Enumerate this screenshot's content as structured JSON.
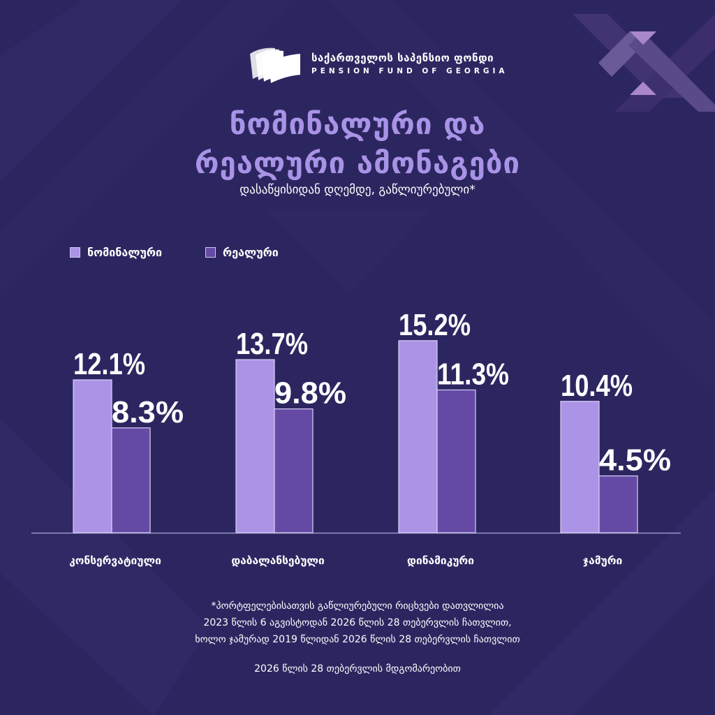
{
  "brand": {
    "name_ka": "საქართველოს საპენსიო ფონდი",
    "name_en": "PENSION FUND OF GEORGIA",
    "logo_icon": "book-pages-icon"
  },
  "header": {
    "title_line1": "ნომინალური და",
    "title_line2": "რეალური ამონაგები",
    "subtitle": "დასაწყისიდან დღემდე, გაწლიურებული*"
  },
  "colors": {
    "background": "#2c2660",
    "title": "#a993e6",
    "nominal": "#ab94e6",
    "real": "#654aa5",
    "text": "#ffffff",
    "baseline": "#9b93c4"
  },
  "chart_data": {
    "type": "bar",
    "title": "ნომინალური და რეალური ამონაგები",
    "subtitle": "დასაწყისიდან დღემდე, გაწლიურებული*",
    "categories": [
      "კონსერვატიული",
      "დაბალანსებული",
      "დინამიკური",
      "ჯამური"
    ],
    "series": [
      {
        "name": "ნომინალური",
        "values": [
          12.1,
          13.7,
          15.2,
          10.4
        ],
        "labels": [
          "12.1%",
          "13.7%",
          "15.2%",
          "10.4%"
        ]
      },
      {
        "name": "რეალური",
        "values": [
          8.3,
          9.8,
          11.3,
          4.5
        ],
        "labels": [
          "8.3%",
          "9.8%",
          "11.3%",
          "4.5%"
        ]
      }
    ],
    "unit": "%",
    "xlabel": "",
    "ylabel": "",
    "ylim": [
      0,
      15.2
    ],
    "grid": false,
    "legend_position": "top-left"
  },
  "footnote": {
    "lines": [
      "*პორტფელებისათვის გაწლიურებული რიცხვები დათვლილია",
      "2023 წლის 6 აგვისტოდან 2026 წლის 28 თებერვლის ჩათვლით,",
      "ხოლო ჯამურად 2019 წლიდან 2026 წლის 28 თებერვლის ჩათვლით"
    ],
    "as_of": "2026 წლის 28 თებერვლის მდგომარეობით"
  }
}
